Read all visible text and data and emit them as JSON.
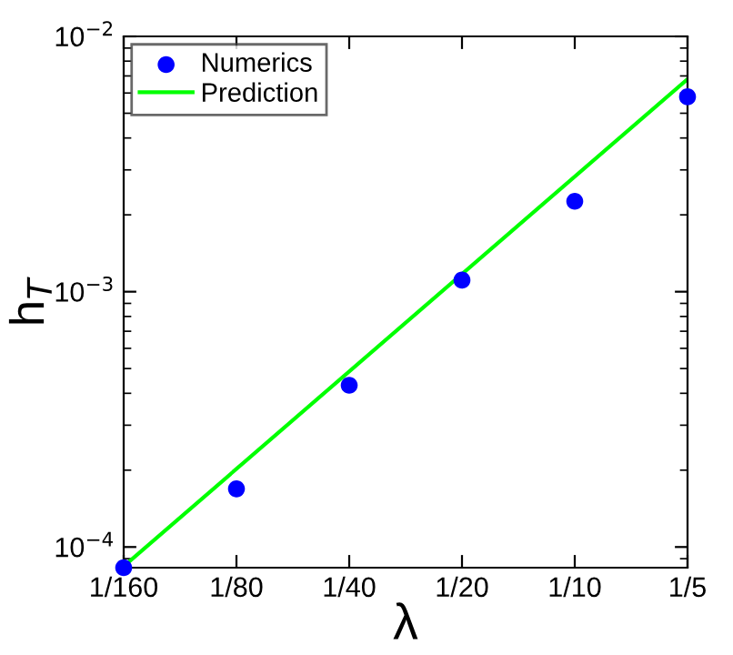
{
  "chart_data": {
    "type": "scatter",
    "xlabel": "λ",
    "ylabel": "h$_{T}$",
    "x": [
      0.00625,
      0.0125,
      0.025,
      0.05,
      0.1,
      0.2
    ],
    "series": [
      {
        "name": "Numerics",
        "color": "#0000ff",
        "marker": "circle",
        "values": [
          8.3e-05,
          0.000169,
          0.00043,
          0.00111,
          0.00226,
          0.0058
        ]
      },
      {
        "name": "Prediction",
        "type": "line",
        "color": "#00ff00",
        "marker": "none",
        "line_style": "solid",
        "x": [
          0.00625,
          0.2
        ],
        "values": [
          8.4e-05,
          0.0068
        ]
      }
    ],
    "log": "xy",
    "xlim": [
      0.00625,
      0.2
    ],
    "xticks": [
      {
        "value": 0.00625,
        "label": "1/160"
      },
      {
        "value": 0.0125,
        "label": "1/80"
      },
      {
        "value": 0.025,
        "label": "1/40"
      },
      {
        "value": 0.05,
        "label": "1/20"
      },
      {
        "value": 0.1,
        "label": "1/10"
      },
      {
        "value": 0.2,
        "label": "1/5"
      }
    ],
    "ylim": [
      8.3e-05,
      0.01
    ],
    "yticks": [
      {
        "value": 0.0001,
        "label": "10$^{−4}$"
      },
      {
        "value": 0.001,
        "label": "10$^{−3}$"
      },
      {
        "value": 0.01,
        "label": "10$^{−2}$"
      }
    ],
    "grid": false,
    "legend": "top left"
  }
}
